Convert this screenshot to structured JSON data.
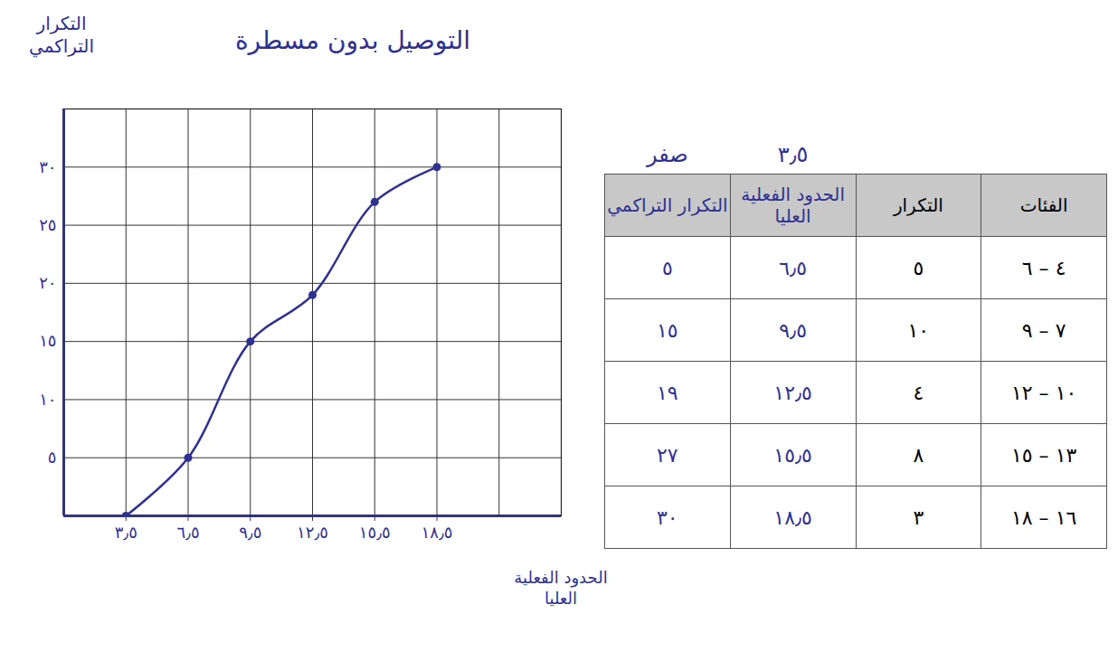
{
  "chart_data": {
    "type": "line",
    "title": "التوصيل بدون مسطرة",
    "x_label": "الحدود الفعلية العليا",
    "y_label": "التكرار التراكمي",
    "x": [
      3.5,
      6.5,
      9.5,
      12.5,
      15.5,
      18.5
    ],
    "values": [
      0,
      5,
      15,
      19,
      27,
      30
    ],
    "color": "#2e3192",
    "marker": "circle",
    "line_style": "solid",
    "xlim": [
      0.5,
      24.5
    ],
    "ylim": [
      0,
      35
    ],
    "xticks": [
      {
        "value": 3.5,
        "label": "٣٫٥"
      },
      {
        "value": 6.5,
        "label": "٦٫٥"
      },
      {
        "value": 9.5,
        "label": "٩٫٥"
      },
      {
        "value": 12.5,
        "label": "١٢٫٥"
      },
      {
        "value": 15.5,
        "label": "١٥٫٥"
      },
      {
        "value": 18.5,
        "label": "١٨٫٥"
      }
    ],
    "yticks": [
      {
        "value": 5,
        "label": "٥"
      },
      {
        "value": 10,
        "label": "١٠"
      },
      {
        "value": 15,
        "label": "١٥"
      },
      {
        "value": 20,
        "label": "٢٠"
      },
      {
        "value": 25,
        "label": "٢٥"
      },
      {
        "value": 30,
        "label": "٣٠"
      }
    ],
    "grid": true
  },
  "table": {
    "columns": [
      {
        "head": "الفئات",
        "color": "#000000"
      },
      {
        "head": "التكرار",
        "color": "#000000"
      },
      {
        "head": "الحدود الفعلية العليا",
        "color": "#2e3192",
        "above": "٣٫٥"
      },
      {
        "head": "التكرار التراكمي",
        "color": "#2e3192",
        "above": "صفر"
      }
    ],
    "rows": [
      [
        "٤ – ٦",
        "٥",
        "٦٫٥",
        "٥"
      ],
      [
        "٧ – ٩",
        "١٠",
        "٩٫٥",
        "١٥"
      ],
      [
        "١٠ – ١٢",
        "٤",
        "١٢٫٥",
        "١٩"
      ],
      [
        "١٣ – ١٥",
        "٨",
        "١٥٫٥",
        "٢٧"
      ],
      [
        "١٦ – ١٨",
        "٣",
        "١٨٫٥",
        "٣٠"
      ]
    ]
  }
}
